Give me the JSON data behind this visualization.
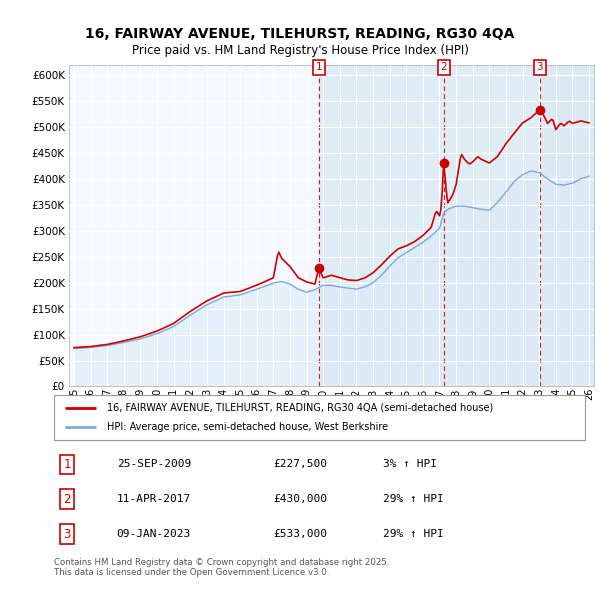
{
  "title_line1": "16, FAIRWAY AVENUE, TILEHURST, READING, RG30 4QA",
  "title_line2": "Price paid vs. HM Land Registry's House Price Index (HPI)",
  "legend_line1": "16, FAIRWAY AVENUE, TILEHURST, READING, RG30 4QA (semi-detached house)",
  "legend_line2": "HPI: Average price, semi-detached house, West Berkshire",
  "footer": "Contains HM Land Registry data © Crown copyright and database right 2025.\nThis data is licensed under the Open Government Licence v3.0.",
  "transactions": [
    {
      "num": 1,
      "date": "25-SEP-2009",
      "price": "£227,500",
      "change": "3% ↑ HPI",
      "year": 2009.73
    },
    {
      "num": 2,
      "date": "11-APR-2017",
      "price": "£430,000",
      "change": "29% ↑ HPI",
      "year": 2017.27
    },
    {
      "num": 3,
      "date": "09-JAN-2023",
      "price": "£533,000",
      "change": "29% ↑ HPI",
      "year": 2023.03
    }
  ],
  "price_color": "#cc0000",
  "hpi_color": "#7aaadd",
  "hpi_fill_color": "#daeaf7",
  "highlight_color": "#daeaf7",
  "grid_color": "#cccccc",
  "bg_color": "#f5f9ff",
  "ylim": [
    0,
    620000
  ],
  "yticks": [
    0,
    50000,
    100000,
    150000,
    200000,
    250000,
    300000,
    350000,
    400000,
    450000,
    500000,
    550000,
    600000
  ],
  "xlim_start": 1994.7,
  "xlim_end": 2026.3,
  "hatch_region_start": 2023.03,
  "hatch_region_end": 2026.3
}
